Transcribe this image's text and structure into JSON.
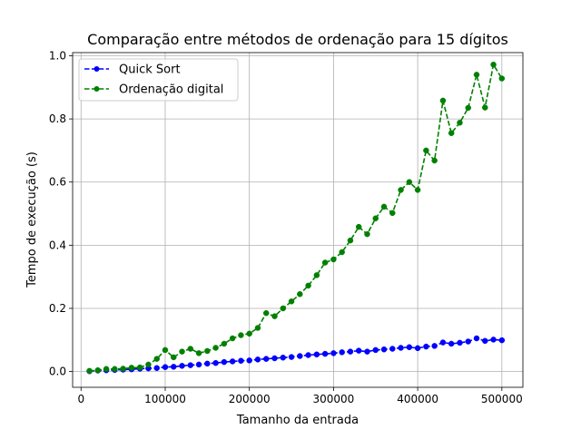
{
  "chart_data": {
    "type": "line",
    "title": "Comparação entre métodos de ordenação para 15 dígitos",
    "xlabel": "Tamanho da entrada",
    "ylabel": "Tempo de execução (s)",
    "xlim": [
      -10000,
      525000
    ],
    "ylim": [
      -0.05,
      1.01
    ],
    "xticks": [
      0,
      100000,
      200000,
      300000,
      400000,
      500000
    ],
    "xtick_labels": [
      "0",
      "100000",
      "200000",
      "300000",
      "400000",
      "500000"
    ],
    "yticks": [
      0.0,
      0.2,
      0.4,
      0.6,
      0.8,
      1.0
    ],
    "ytick_labels": [
      "0.0",
      "0.2",
      "0.4",
      "0.6",
      "0.8",
      "1.0"
    ],
    "grid": true,
    "legend_position": "top-left",
    "x": [
      10000,
      20000,
      30000,
      40000,
      50000,
      60000,
      70000,
      80000,
      90000,
      100000,
      110000,
      120000,
      130000,
      140000,
      150000,
      160000,
      170000,
      180000,
      190000,
      200000,
      210000,
      220000,
      230000,
      240000,
      250000,
      260000,
      270000,
      280000,
      290000,
      300000,
      310000,
      320000,
      330000,
      340000,
      350000,
      360000,
      370000,
      380000,
      390000,
      400000,
      410000,
      420000,
      430000,
      440000,
      450000,
      460000,
      470000,
      480000,
      490000,
      500000
    ],
    "series": [
      {
        "name": "Quick Sort",
        "color": "#0000ff",
        "linestyle": "dashed",
        "marker": "circle",
        "values": [
          0.001,
          0.003,
          0.004,
          0.005,
          0.006,
          0.007,
          0.009,
          0.01,
          0.011,
          0.014,
          0.015,
          0.018,
          0.02,
          0.022,
          0.025,
          0.027,
          0.03,
          0.032,
          0.034,
          0.035,
          0.038,
          0.04,
          0.042,
          0.044,
          0.046,
          0.049,
          0.052,
          0.054,
          0.056,
          0.058,
          0.061,
          0.063,
          0.066,
          0.063,
          0.068,
          0.07,
          0.072,
          0.075,
          0.077,
          0.074,
          0.079,
          0.081,
          0.092,
          0.088,
          0.091,
          0.095,
          0.105,
          0.097,
          0.101,
          0.099
        ]
      },
      {
        "name": "Ordenação digital",
        "color": "#008000",
        "linestyle": "dashed",
        "marker": "circle",
        "values": [
          0.002,
          0.004,
          0.008,
          0.008,
          0.009,
          0.012,
          0.013,
          0.022,
          0.04,
          0.068,
          0.045,
          0.063,
          0.072,
          0.058,
          0.065,
          0.075,
          0.088,
          0.105,
          0.115,
          0.12,
          0.138,
          0.185,
          0.175,
          0.2,
          0.222,
          0.245,
          0.272,
          0.305,
          0.345,
          0.355,
          0.378,
          0.415,
          0.458,
          0.435,
          0.485,
          0.522,
          0.502,
          0.575,
          0.6,
          0.575,
          0.7,
          0.668,
          0.858,
          0.755,
          0.788,
          0.835,
          0.94,
          0.836,
          0.972,
          0.928
        ]
      }
    ]
  }
}
